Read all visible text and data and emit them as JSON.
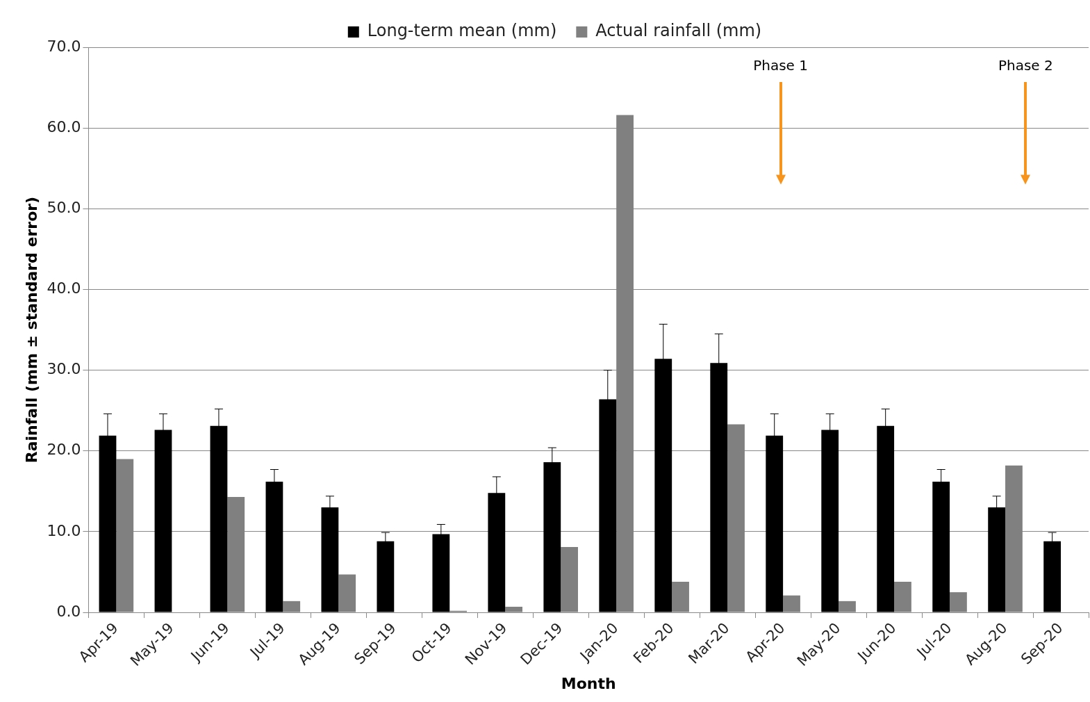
{
  "chart_data": {
    "type": "bar",
    "xlabel": "Month",
    "ylabel": "Rainfall (mm ± standard error)",
    "categories": [
      "Apr-19",
      "May-19",
      "Jun-19",
      "Jul-19",
      "Aug-19",
      "Sep-19",
      "Oct-19",
      "Nov-19",
      "Dec-19",
      "Jan-20",
      "Feb-20",
      "Mar-20",
      "Apr-20",
      "May-20",
      "Jun-20",
      "Jul-20",
      "Aug-20",
      "Sep-20"
    ],
    "series": [
      {
        "name": "Long-term mean (mm)",
        "color": "#000000",
        "values": [
          21.9,
          22.6,
          23.1,
          16.2,
          13.0,
          8.8,
          9.7,
          14.8,
          18.6,
          26.4,
          31.4,
          30.9,
          21.9,
          22.6,
          23.1,
          16.2,
          13.0,
          8.8
        ],
        "errors": [
          2.7,
          2.0,
          2.1,
          1.5,
          1.4,
          1.1,
          1.2,
          2.0,
          1.8,
          3.6,
          4.3,
          3.6,
          2.7,
          2.0,
          2.1,
          1.5,
          1.4,
          1.1
        ]
      },
      {
        "name": "Actual rainfall (mm)",
        "color": "#808080",
        "values": [
          19.0,
          0,
          14.3,
          1.4,
          4.7,
          0,
          0.2,
          0.7,
          8.1,
          61.6,
          3.8,
          23.3,
          2.1,
          1.4,
          3.8,
          2.5,
          18.2,
          0
        ]
      }
    ],
    "ylim": [
      0,
      70
    ],
    "yticks": [
      {
        "value": 0,
        "label": "0.0"
      },
      {
        "value": 10,
        "label": "10.0"
      },
      {
        "value": 20,
        "label": "20.0"
      },
      {
        "value": 30,
        "label": "30.0"
      },
      {
        "value": 40,
        "label": "40.0"
      },
      {
        "value": 50,
        "label": "50.0"
      },
      {
        "value": 60,
        "label": "60.0"
      },
      {
        "value": 70,
        "label": "70.0"
      }
    ],
    "grid": "y",
    "legend": "top",
    "annotations": [
      "Phase 1",
      "Phase 2"
    ]
  }
}
